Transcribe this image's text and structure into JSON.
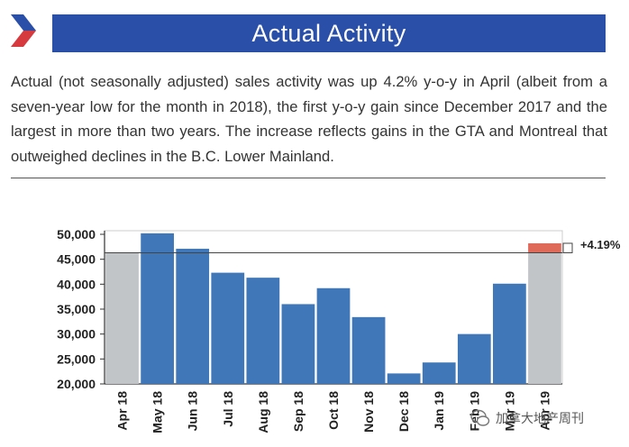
{
  "header": {
    "title": "Actual Activity",
    "description": "Actual (not seasonally adjusted) sales activity was up 4.2% y-o-y in April (albeit from a seven-year low for the month in 2018), the first y-o-y gain since December 2017 and the largest in more than two years. The increase reflects gains in the GTA and Montreal that outweighed declines in the B.C. Lower Mainland."
  },
  "watermark": {
    "text": "加拿大地产周刊"
  },
  "colors": {
    "brand": "#2a4fa8",
    "bar": "#3f77b8",
    "highlight_bar": "#c2c5c8",
    "gain": "#e06a5a"
  },
  "chart_data": {
    "type": "bar",
    "categories": [
      "Apr 18",
      "May 18",
      "Jun 18",
      "Jul 18",
      "Aug 18",
      "Sep 18",
      "Oct 18",
      "Nov 18",
      "Dec 18",
      "Jan 19",
      "Feb 19",
      "Mar 19",
      "Apr 19"
    ],
    "values": [
      46300,
      50200,
      47100,
      42300,
      41300,
      36000,
      39200,
      33400,
      22100,
      24300,
      30000,
      40100,
      48200
    ],
    "highlighted": [
      "Apr 18",
      "Apr 19"
    ],
    "reference_line": 46300,
    "annotation": "+4.19%",
    "ylim": [
      20000,
      50000
    ],
    "yticks": [
      "20,000",
      "25,000",
      "30,000",
      "35,000",
      "40,000",
      "45,000",
      "50,000"
    ],
    "title": "",
    "xlabel": "",
    "ylabel": ""
  }
}
